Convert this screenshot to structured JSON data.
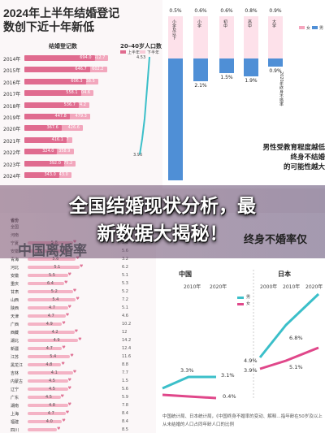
{
  "top_left": {
    "title": "2024年上半年结婚登记数创下近十年新低",
    "chart1_title": "结婚登记数",
    "chart2_title": "20–40岁人口数",
    "legend": [
      "上半年",
      "下半年"
    ],
    "years": [
      "2014年",
      "2015年",
      "2016年",
      "2017年",
      "2018年",
      "2019年",
      "2020年",
      "2021年",
      "2022年",
      "2023年",
      "2024年"
    ],
    "h1": [
      null,
      null,
      null,
      null,
      null,
      null,
      null,
      null,
      null,
      null,
      null
    ],
    "h2": [
      "612.7",
      "602.2",
      "538.5",
      "504.6",
      "474.2",
      "479.3",
      "426.6",
      "347.7",
      "358.9",
      "375.2",
      "343.0"
    ],
    "h1_labels": [
      "694.0",
      "646.7",
      "606.3",
      "558.1",
      "536.7",
      "447.8",
      "367.6",
      "416.1",
      "324.0",
      "392.0",
      "343.0"
    ],
    "pop_top": "4.53",
    "pop_bottom": "3.96"
  },
  "top_right": {
    "legend": [
      "女",
      "男"
    ],
    "edu": [
      "小学及以下",
      "小学",
      "初中",
      "高中",
      "大学",
      "大学以上"
    ],
    "col_vals": [
      "0.5%",
      "0.6%",
      "0.6%",
      "0.8%",
      "0.9%",
      ""
    ],
    "col_low": [
      "",
      "2.1%",
      "1.5%",
      "1.9%",
      "0.9%",
      ""
    ],
    "side_note": "2020年终身不婚率",
    "title_lines": [
      "男性受教育程度越低",
      "终身不结婚",
      "的可能性越大"
    ]
  },
  "banner": {
    "line1": "全国结婚现状分析，最",
    "line2": "新数据大揭秘！",
    "behind_left": "中国离婚率",
    "behind_right": "终身不婚率仅"
  },
  "bottom_left": {
    "head": "省份",
    "provinces": [
      {
        "name": "全国",
        "v": "",
        "w": 0
      },
      {
        "name": "河南",
        "v": "",
        "w": 0
      },
      {
        "name": "宁夏",
        "v": "5.8",
        "w": 0.62
      },
      {
        "name": "安徽",
        "v": "5.1",
        "w": 0.57
      },
      {
        "name": "青海",
        "v": "5.6",
        "w": 0.66
      },
      {
        "name": "河北",
        "v": "5.1",
        "w": 0.71
      },
      {
        "name": "安徽",
        "v": "5.5",
        "w": 0.55
      },
      {
        "name": "重庆",
        "v": "6.4",
        "w": 0.5
      },
      {
        "name": "甘肃",
        "v": "5.2",
        "w": 0.62
      },
      {
        "name": "山西",
        "v": "5.4",
        "w": 0.66
      },
      {
        "name": "陕西",
        "v": "4.7",
        "w": 0.55
      },
      {
        "name": "天津",
        "v": "4.7",
        "w": 0.52
      },
      {
        "name": "广西",
        "v": "4.9",
        "w": 0.47
      },
      {
        "name": "西藏",
        "v": "4.2",
        "w": 0.64
      },
      {
        "name": "湖北",
        "v": "4.9",
        "w": 0.69
      },
      {
        "name": "新疆",
        "v": "4.7",
        "w": 0.47
      },
      {
        "name": "江苏",
        "v": "5.4",
        "w": 0.58
      },
      {
        "name": "黑龙江",
        "v": "4.8",
        "w": 0.46
      },
      {
        "name": "吉林",
        "v": "4.1",
        "w": 0.62
      },
      {
        "name": "内蒙古",
        "v": "4.5",
        "w": 0.55
      },
      {
        "name": "辽宁",
        "v": "4.5",
        "w": 0.55
      },
      {
        "name": "广东",
        "v": "4.5",
        "w": 0.45
      },
      {
        "name": "湖南",
        "v": "4.8",
        "w": 0.55
      },
      {
        "name": "上海",
        "v": "4.7",
        "w": 0.52
      },
      {
        "name": "福建",
        "v": "4.0",
        "w": 0.47
      },
      {
        "name": "四川",
        "v": "",
        "w": 0.4
      }
    ],
    "right_vals": [
      "5.9",
      "5.6",
      "3.2",
      "6.2",
      "5.1",
      "5.3",
      "5.2",
      "7.2",
      "5.1",
      "4.6",
      "10.2",
      "12",
      "14.2",
      "12.4",
      "11.6",
      "8.8",
      "7.7",
      "1.5",
      "5.6",
      "5.9",
      "7.8",
      "8.4",
      "8.4",
      "8.5"
    ]
  },
  "bottom_right": {
    "countries": [
      "中国",
      "日本"
    ],
    "years_cn": [
      "2010年",
      "2020年"
    ],
    "years_jp": [
      "2000年",
      "2010年",
      "2020年"
    ],
    "legend": [
      "男",
      "女"
    ],
    "cn_labels": [
      "3.3%",
      "3.1%",
      "0.4%"
    ],
    "jp_labels": [
      "4.9%",
      "6.8%",
      "3.9%",
      "5.1%"
    ],
    "note": "中国统计局、日本统计局，《中国终身不婚率的变动、解释…指年龄在50岁及以上从未结婚的人口占同年龄人口的比例"
  },
  "colors": {
    "pink": "#f2a7bd",
    "dark_pink": "#e06b8f",
    "blue": "#4f8fd6",
    "teal": "#3bbfc9",
    "magenta": "#e0478a"
  }
}
